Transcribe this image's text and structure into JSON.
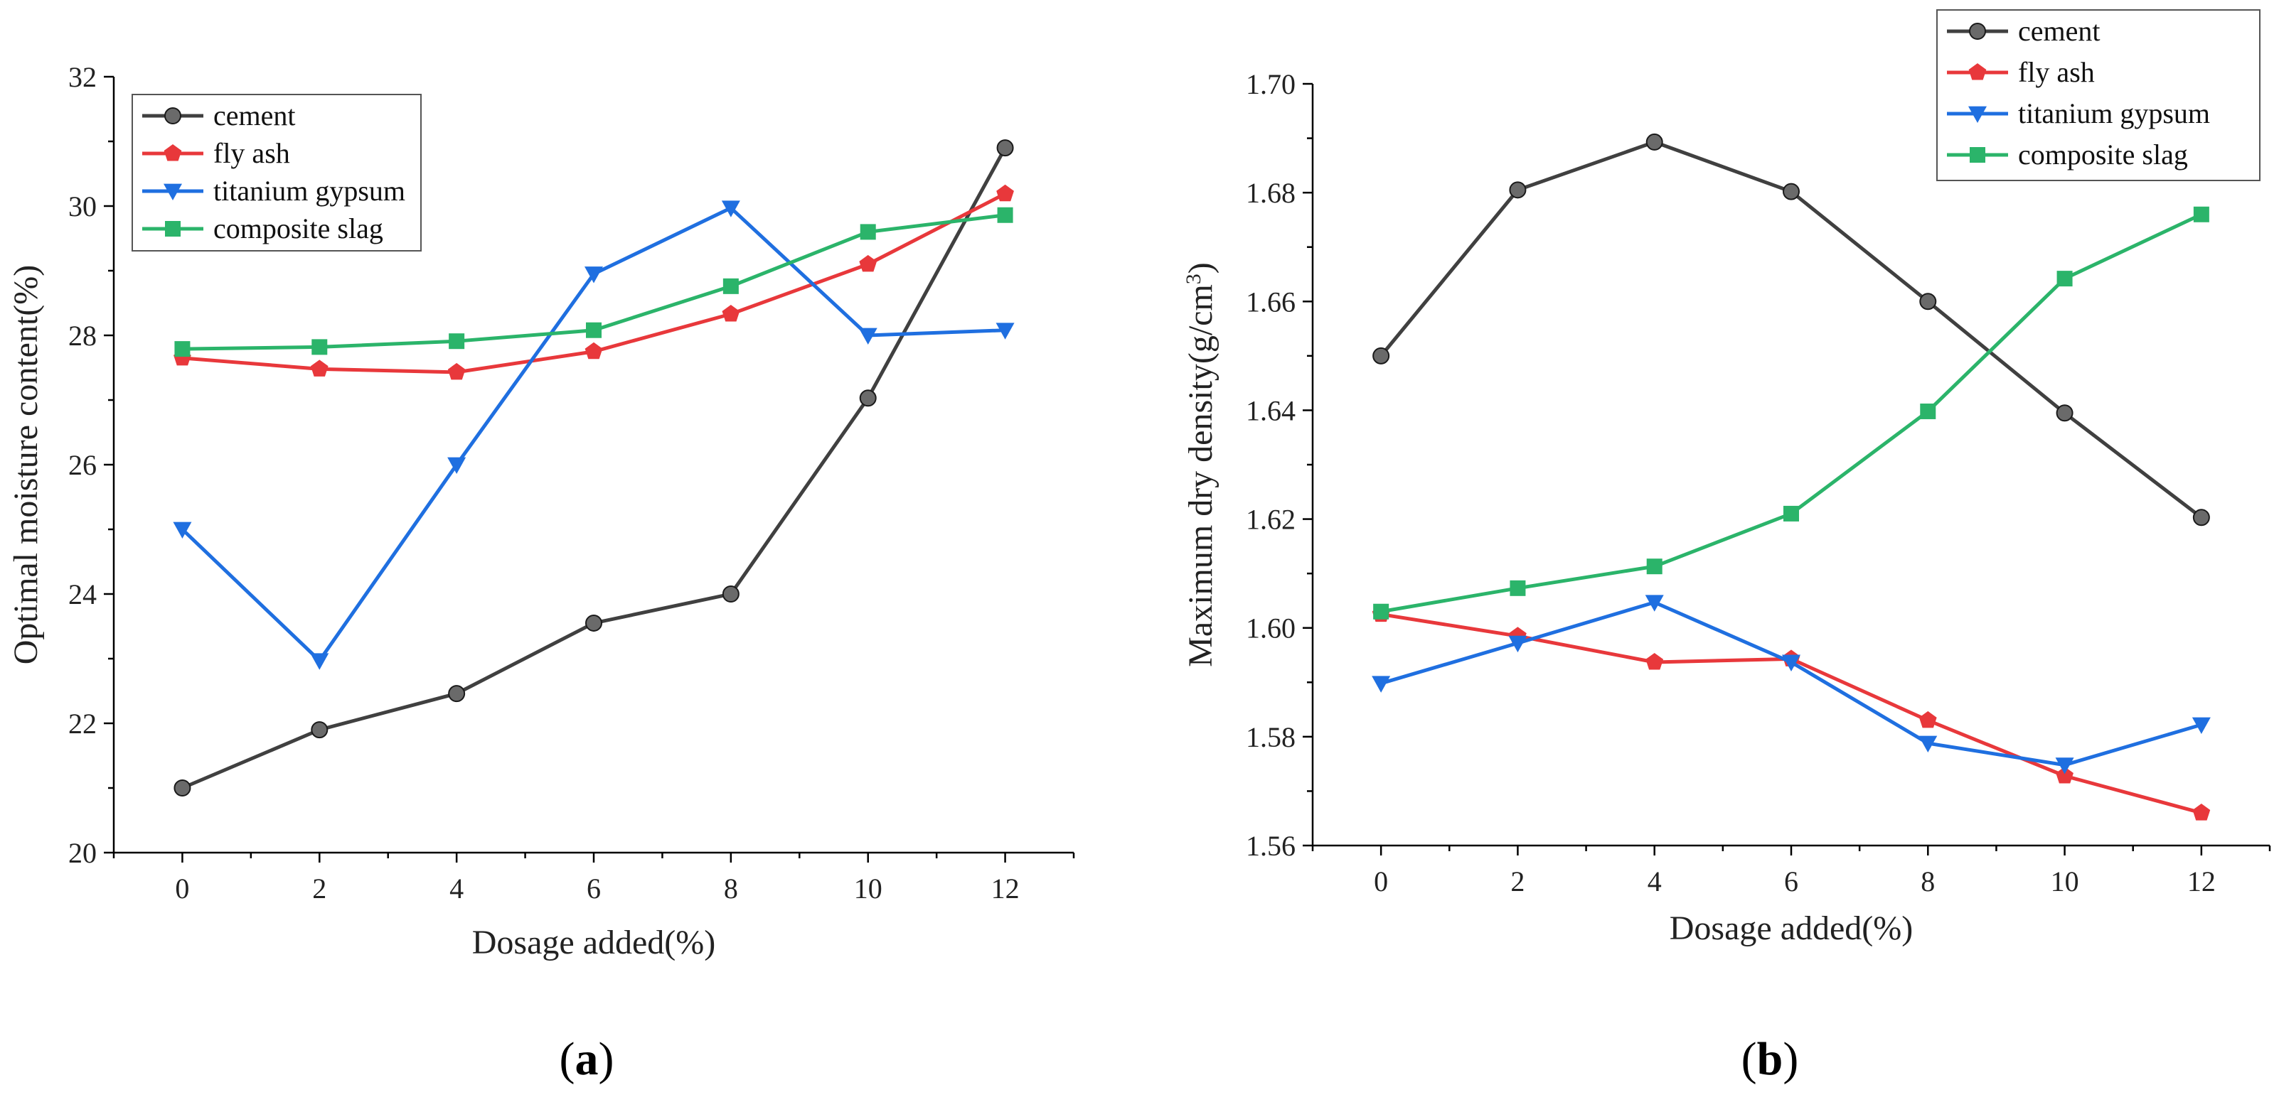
{
  "chart_data": [
    {
      "type": "line",
      "title": "",
      "panel_label": "a",
      "xlabel": "Dosage added(%)",
      "ylabel": "Optimal moisture content(%)",
      "ylabel_sup": "",
      "ylabel_end": "",
      "x": [
        0,
        2,
        4,
        6,
        8,
        10,
        12
      ],
      "xlim": [
        -1,
        13
      ],
      "ylim": [
        20,
        32
      ],
      "xticks": [
        "0",
        "2",
        "4",
        "6",
        "8",
        "10",
        "12"
      ],
      "yticks": [
        "20",
        "22",
        "24",
        "26",
        "28",
        "30",
        "32"
      ],
      "legend_position": "top-left",
      "series": [
        {
          "name": "cement",
          "color": "#404040",
          "marker": "circle",
          "values": [
            21.0,
            21.9,
            22.46,
            23.55,
            24.0,
            27.03,
            30.9
          ]
        },
        {
          "name": "fly ash",
          "color": "#e8383b",
          "marker": "pentagon",
          "values": [
            27.65,
            27.48,
            27.43,
            27.75,
            28.33,
            29.1,
            30.19
          ]
        },
        {
          "name": "titanium gypsum",
          "color": "#1f6fe0",
          "marker": "triangle-down",
          "values": [
            25.0,
            22.97,
            26.0,
            28.95,
            29.97,
            28.0,
            28.08
          ]
        },
        {
          "name": "composite slag",
          "color": "#2bb46a",
          "marker": "square",
          "values": [
            27.79,
            27.82,
            27.91,
            28.08,
            28.76,
            29.6,
            29.86
          ]
        }
      ]
    },
    {
      "type": "line",
      "title": "",
      "panel_label": "b",
      "xlabel": "Dosage added(%)",
      "ylabel": "Maximum dry density(g/cm",
      "ylabel_sup": "3",
      "ylabel_end": ")",
      "x": [
        0,
        2,
        4,
        6,
        8,
        10,
        12
      ],
      "xlim": [
        -1,
        13
      ],
      "ylim": [
        1.56,
        1.7
      ],
      "xticks": [
        "0",
        "2",
        "4",
        "6",
        "8",
        "10",
        "12"
      ],
      "yticks": [
        "1.56",
        "1.58",
        "1.60",
        "1.62",
        "1.64",
        "1.66",
        "1.68",
        "1.70"
      ],
      "legend_position": "top-right",
      "series": [
        {
          "name": "cement",
          "color": "#404040",
          "marker": "circle",
          "values": [
            1.65,
            1.6805,
            1.6893,
            1.6802,
            1.66,
            1.6395,
            1.6203
          ]
        },
        {
          "name": "fly ash",
          "color": "#e8383b",
          "marker": "pentagon",
          "values": [
            1.6025,
            1.5985,
            1.5937,
            1.5943,
            1.583,
            1.5728,
            1.566
          ]
        },
        {
          "name": "titanium gypsum",
          "color": "#1f6fe0",
          "marker": "triangle-down",
          "values": [
            1.5898,
            1.5972,
            1.6047,
            1.5937,
            1.5788,
            1.5748,
            1.5822
          ]
        },
        {
          "name": "composite slag",
          "color": "#2bb46a",
          "marker": "square",
          "values": [
            1.603,
            1.6073,
            1.6113,
            1.621,
            1.6398,
            1.6642,
            1.676
          ]
        }
      ]
    }
  ]
}
